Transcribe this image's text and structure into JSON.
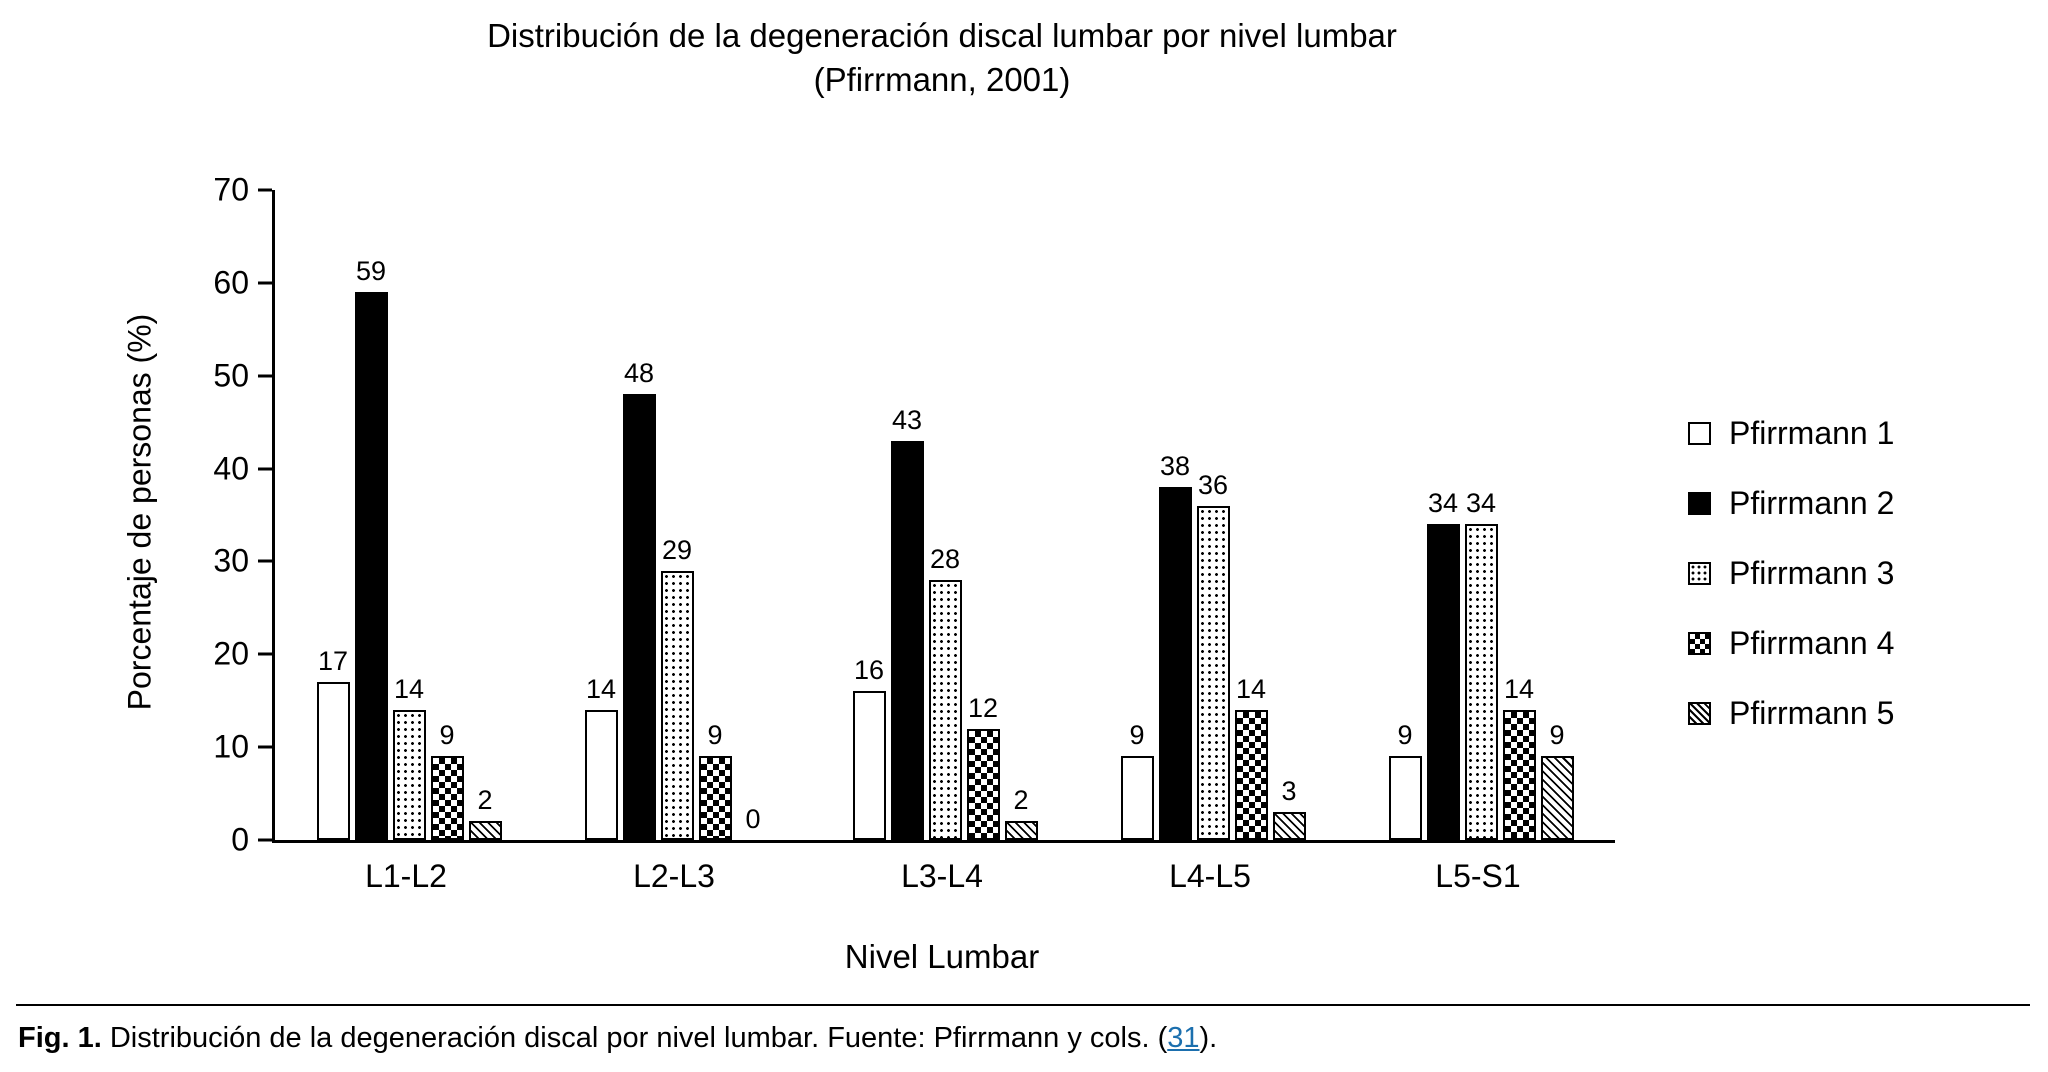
{
  "chart_data": {
    "type": "bar",
    "title": "Distribución de la degeneración discal lumbar por nivel lumbar (Pfirrmann, 2001)",
    "title_line1": "Distribución de la degeneración discal lumbar por nivel lumbar",
    "title_line2": "(Pfirrmann, 2001)",
    "xlabel": "Nivel Lumbar",
    "ylabel": "Porcentaje de personas (%)",
    "ylim": [
      0,
      70
    ],
    "yticks": [
      0,
      10,
      20,
      30,
      40,
      50,
      60,
      70
    ],
    "grid": false,
    "legend_position": "right",
    "categories": [
      "L1-L2",
      "L2-L3",
      "L3-L4",
      "L4-L5",
      "L5-S1"
    ],
    "series": [
      {
        "name": "Pfirrmann 1",
        "marker_pattern": "white-outline",
        "values": [
          17,
          14,
          16,
          9,
          9
        ]
      },
      {
        "name": "Pfirrmann 2",
        "marker_pattern": "solid-black",
        "values": [
          59,
          48,
          43,
          38,
          34
        ]
      },
      {
        "name": "Pfirrmann 3",
        "marker_pattern": "dots",
        "values": [
          14,
          29,
          28,
          36,
          34
        ]
      },
      {
        "name": "Pfirrmann 4",
        "marker_pattern": "checkerboard",
        "values": [
          9,
          9,
          12,
          14,
          14
        ]
      },
      {
        "name": "Pfirrmann 5",
        "marker_pattern": "diagonal-hatch",
        "values": [
          2,
          0,
          2,
          3,
          9
        ]
      }
    ]
  },
  "caption": {
    "prefix": "Fig. 1.",
    "body": " Distribución de la degeneración discal por nivel lumbar. Fuente: Pfirrmann y cols. (",
    "link": "31",
    "suffix": ")."
  },
  "colors": {
    "bar_black": "#000000",
    "background": "#ffffff",
    "link": "#1b6fae"
  }
}
